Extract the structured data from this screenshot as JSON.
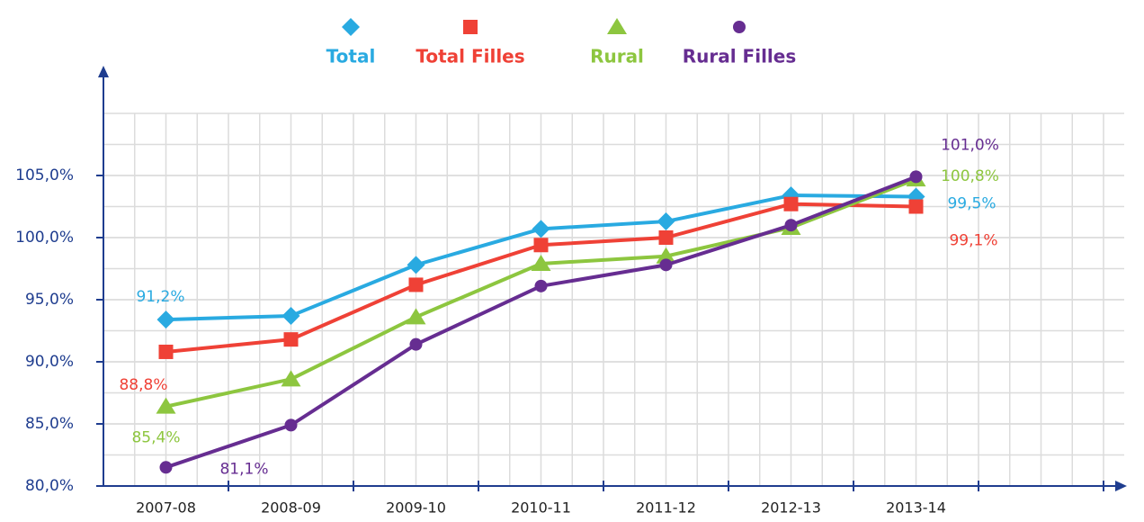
{
  "chart_data": {
    "type": "line",
    "categories": [
      "2007-08",
      "2008-09",
      "2009-10",
      "2010-11",
      "2011-12",
      "2012-13",
      "2013-14",
      null
    ],
    "series": [
      {
        "name": "Total",
        "color": "#29aae1",
        "marker": "diamond",
        "values": [
          93.4,
          93.7,
          97.8,
          100.7,
          101.3,
          103.4,
          103.3,
          null
        ],
        "annotations": [
          "91,2%",
          "99,5%"
        ]
      },
      {
        "name": "Total Filles",
        "color": "#ef4136",
        "marker": "square",
        "values": [
          90.8,
          91.8,
          96.2,
          99.4,
          100.0,
          102.7,
          102.5,
          null
        ],
        "annotations": [
          "88,8%",
          "99,1%"
        ]
      },
      {
        "name": "Rural",
        "color": "#8dc63f",
        "marker": "triangle",
        "values": [
          86.4,
          88.6,
          93.6,
          97.9,
          98.5,
          100.8,
          104.7,
          null
        ],
        "annotations": [
          "85,4%",
          "100,8%"
        ]
      },
      {
        "name": "Rural Filles",
        "color": "#662d91",
        "marker": "circle",
        "values": [
          81.5,
          84.9,
          91.4,
          96.1,
          97.8,
          101.0,
          104.9,
          null
        ],
        "annotations": [
          "81,1%",
          "101,0%"
        ]
      }
    ],
    "ylim": [
      80,
      110
    ],
    "yticks": [
      {
        "value": 80,
        "label": "80,0%"
      },
      {
        "value": 85,
        "label": "85,0%"
      },
      {
        "value": 90,
        "label": "90,0%"
      },
      {
        "value": 95,
        "label": "95,0%"
      },
      {
        "value": 100,
        "label": "100,0%"
      },
      {
        "value": 105,
        "label": "105,0%"
      }
    ],
    "grid": true,
    "legend": "top"
  }
}
